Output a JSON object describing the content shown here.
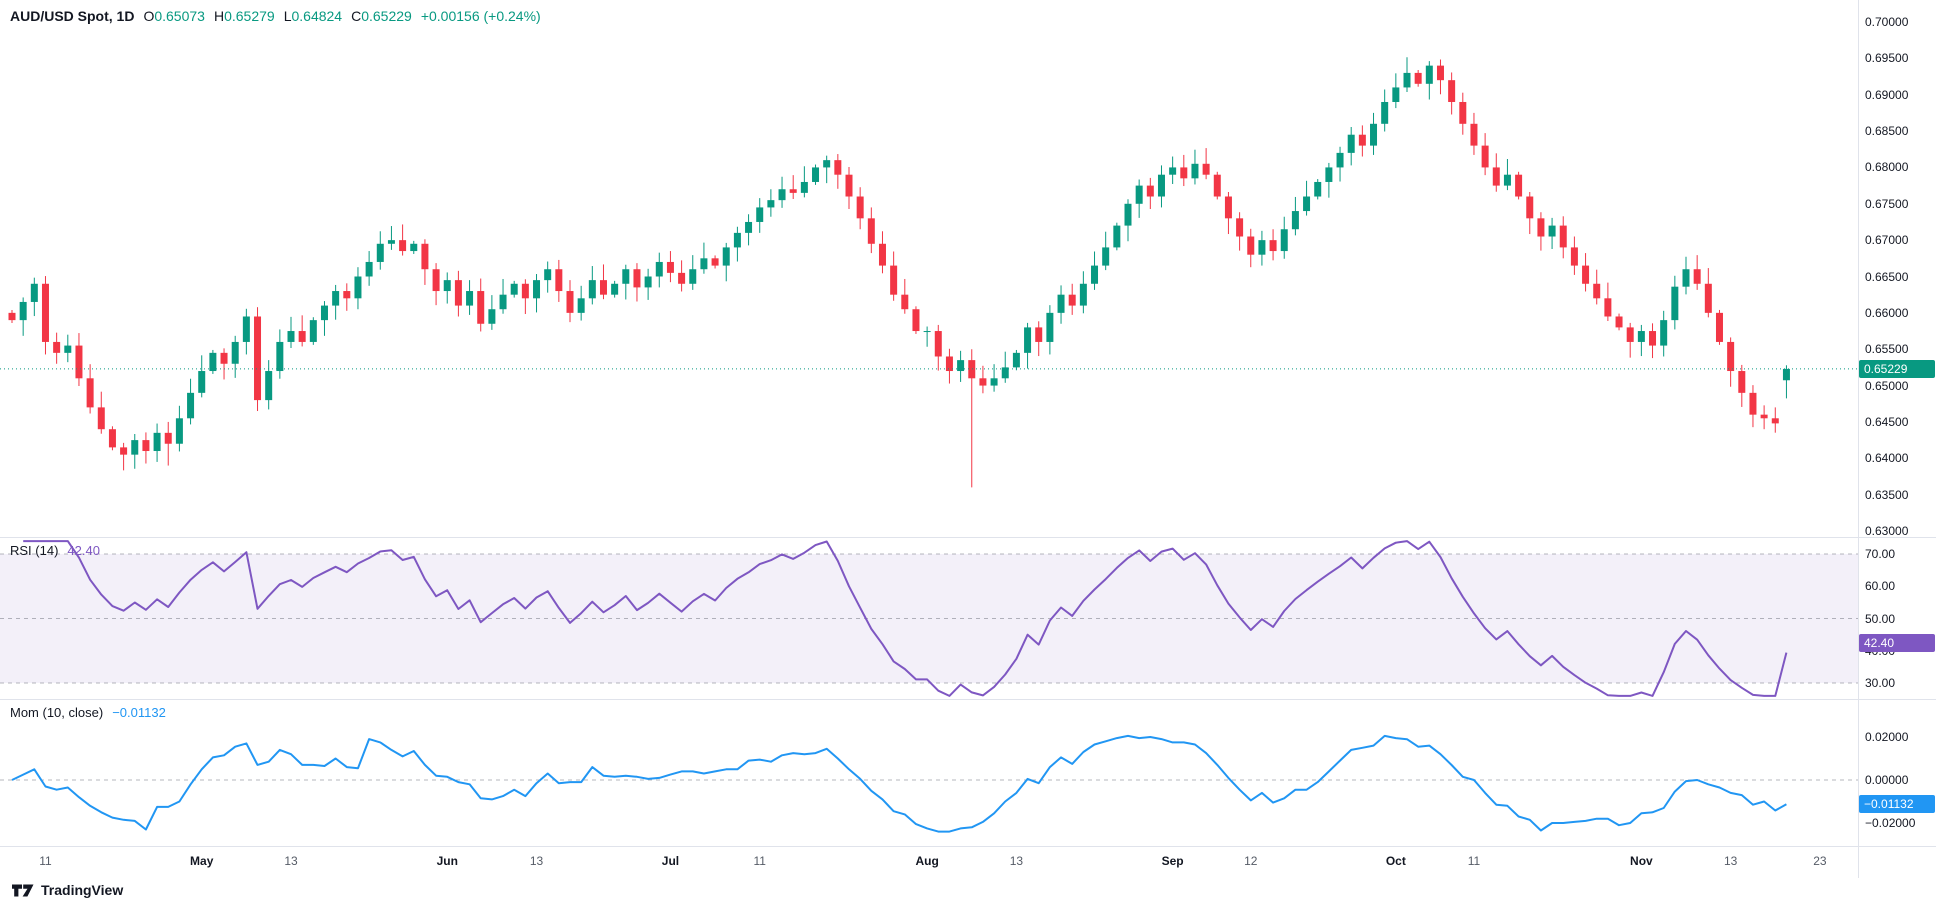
{
  "header": {
    "symbol": "AUD/USD Spot, 1D",
    "open": {
      "label": "O",
      "value": "0.65073"
    },
    "high": {
      "label": "H",
      "value": "0.65279"
    },
    "low": {
      "label": "L",
      "value": "0.64824"
    },
    "close": {
      "label": "C",
      "value": "0.65229"
    },
    "change": "+0.00156 (+0.24%)"
  },
  "colors": {
    "up": "#089981",
    "down": "#F23645",
    "rsi": "#7E57C2",
    "rsi_band": "#7E57C2",
    "mom": "#2196F3",
    "price_line": "#089981",
    "level_line": "#787b86",
    "separator": "#e0e3eb"
  },
  "footer": {
    "brand": "TradingView"
  },
  "chart_data": {
    "type": "candlestick+indicators",
    "price": {
      "type": "candlestick",
      "title": "AUD/USD Spot, 1D",
      "ylim": [
        0.63,
        0.7
      ],
      "first_open": 0.66,
      "closes": [
        0.659,
        0.6615,
        0.664,
        0.656,
        0.6545,
        0.6555,
        0.651,
        0.647,
        0.644,
        0.6415,
        0.6405,
        0.6425,
        0.641,
        0.6435,
        0.642,
        0.6455,
        0.649,
        0.652,
        0.6545,
        0.653,
        0.656,
        0.6595,
        0.648,
        0.652,
        0.656,
        0.6575,
        0.656,
        0.659,
        0.661,
        0.663,
        0.662,
        0.665,
        0.667,
        0.6695,
        0.67,
        0.6685,
        0.6695,
        0.666,
        0.663,
        0.6645,
        0.661,
        0.663,
        0.6585,
        0.6605,
        0.6625,
        0.664,
        0.662,
        0.6645,
        0.666,
        0.663,
        0.66,
        0.662,
        0.6645,
        0.6625,
        0.664,
        0.666,
        0.6635,
        0.665,
        0.667,
        0.6655,
        0.664,
        0.666,
        0.6675,
        0.6665,
        0.669,
        0.671,
        0.6725,
        0.6745,
        0.6755,
        0.677,
        0.6765,
        0.678,
        0.68,
        0.681,
        0.679,
        0.676,
        0.673,
        0.6695,
        0.6665,
        0.6625,
        0.6605,
        0.6575,
        0.6575,
        0.654,
        0.652,
        0.6535,
        0.651,
        0.65,
        0.651,
        0.6525,
        0.6545,
        0.658,
        0.656,
        0.66,
        0.6625,
        0.661,
        0.664,
        0.6665,
        0.669,
        0.672,
        0.675,
        0.6775,
        0.676,
        0.679,
        0.68,
        0.6785,
        0.6805,
        0.679,
        0.676,
        0.673,
        0.6705,
        0.668,
        0.67,
        0.6685,
        0.6715,
        0.674,
        0.676,
        0.678,
        0.68,
        0.682,
        0.6845,
        0.683,
        0.686,
        0.689,
        0.691,
        0.693,
        0.6915,
        0.694,
        0.692,
        0.689,
        0.686,
        0.683,
        0.68,
        0.6775,
        0.679,
        0.676,
        0.673,
        0.6705,
        0.672,
        0.669,
        0.6665,
        0.664,
        0.662,
        0.6595,
        0.658,
        0.656,
        0.6575,
        0.6555,
        0.659,
        0.6636,
        0.666,
        0.664,
        0.66,
        0.656,
        0.652,
        0.649,
        0.646,
        0.6455,
        0.6448,
        0.65229
      ],
      "overrides": {
        "14": {
          "l": 0.639
        },
        "86": {
          "l": 0.636
        },
        "159": {
          "o": 0.65073,
          "h": 0.65279,
          "l": 0.64824,
          "c": 0.65229
        }
      },
      "price_line": 0.65229,
      "price_line_label": "0.65229",
      "y_labels": [
        {
          "t": "0.70000",
          "v": 0.7
        },
        {
          "t": "0.69500",
          "v": 0.695
        },
        {
          "t": "0.69000",
          "v": 0.69
        },
        {
          "t": "0.68500",
          "v": 0.685
        },
        {
          "t": "0.68000",
          "v": 0.68
        },
        {
          "t": "0.67500",
          "v": 0.675
        },
        {
          "t": "0.67000",
          "v": 0.67
        },
        {
          "t": "0.66500",
          "v": 0.665
        },
        {
          "t": "0.66000",
          "v": 0.66
        },
        {
          "t": "0.65500",
          "v": 0.655
        },
        {
          "t": "0.65000",
          "v": 0.65
        },
        {
          "t": "0.64500",
          "v": 0.645
        },
        {
          "t": "0.64000",
          "v": 0.64
        },
        {
          "t": "0.63500",
          "v": 0.635
        },
        {
          "t": "0.63000",
          "v": 0.63
        }
      ]
    },
    "rsi": {
      "type": "line",
      "name": "RSI (14)",
      "period": 14,
      "value": 42.4,
      "value_label": "42.40",
      "levels": [
        70,
        50,
        30
      ],
      "band": [
        30,
        70
      ],
      "y_labels": [
        {
          "t": "70.00",
          "v": 70
        },
        {
          "t": "60.00",
          "v": 60
        },
        {
          "t": "50.00",
          "v": 50
        },
        {
          "t": "40.00",
          "v": 40
        },
        {
          "t": "30.00",
          "v": 30
        }
      ]
    },
    "mom": {
      "type": "line",
      "name": "Mom (10, close)",
      "period": 10,
      "value": -0.01132,
      "value_label": "−0.01132",
      "y_labels": [
        {
          "t": "0.02000",
          "v": 0.02
        },
        {
          "t": "0.00000",
          "v": 0.0
        },
        {
          "t": "−0.02000",
          "v": -0.02
        }
      ]
    },
    "x_axis": {
      "ticks": [
        {
          "t": "11",
          "i": 3
        },
        {
          "t": "May",
          "i": 17
        },
        {
          "t": "13",
          "i": 25
        },
        {
          "t": "Jun",
          "i": 39
        },
        {
          "t": "13",
          "i": 47
        },
        {
          "t": "Jul",
          "i": 59
        },
        {
          "t": "11",
          "i": 67
        },
        {
          "t": "Aug",
          "i": 82
        },
        {
          "t": "13",
          "i": 90
        },
        {
          "t": "Sep",
          "i": 104
        },
        {
          "t": "12",
          "i": 111
        },
        {
          "t": "Oct",
          "i": 124
        },
        {
          "t": "11",
          "i": 131
        },
        {
          "t": "Nov",
          "i": 146
        },
        {
          "t": "13",
          "i": 154
        },
        {
          "t": "23",
          "i": 162
        }
      ]
    }
  }
}
